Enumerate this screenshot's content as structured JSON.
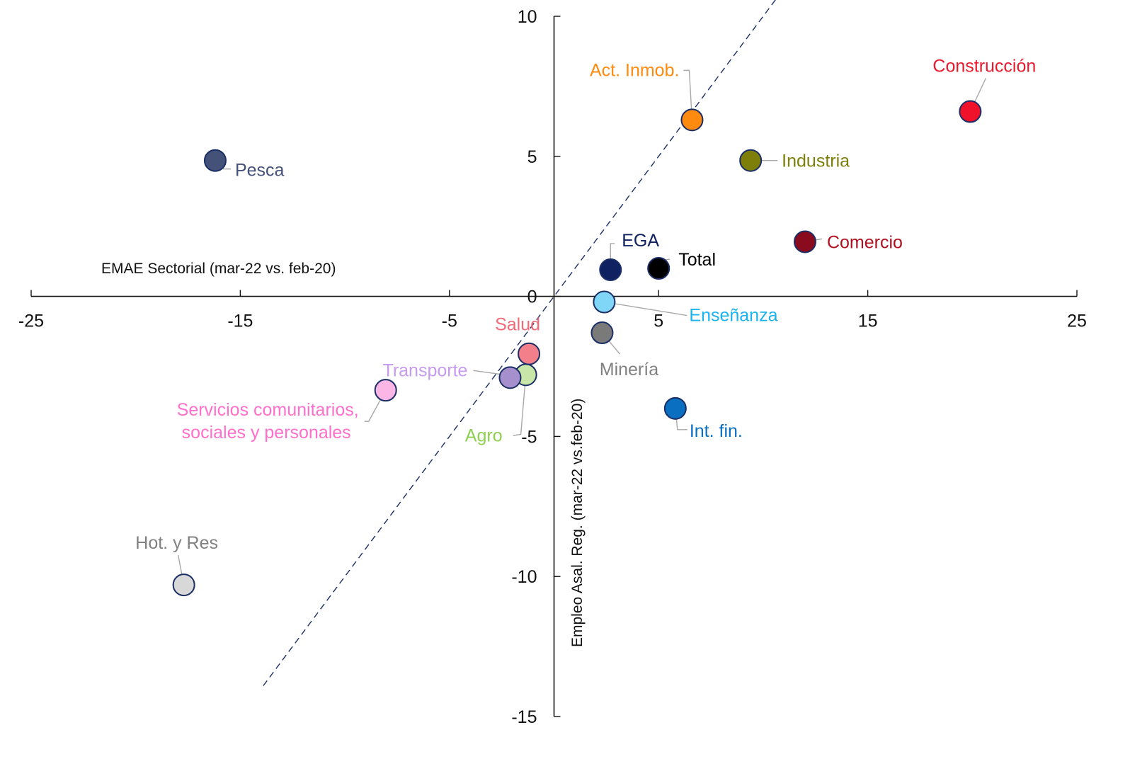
{
  "chart_data": {
    "type": "scatter",
    "title": "",
    "xlabel": "EMAE Sectorial (mar-22 vs. feb-20)",
    "ylabel": "Empleo  Asal. Reg. (mar-22 vs.feb-20)",
    "xlim": [
      -25,
      25
    ],
    "ylim": [
      -15,
      10
    ],
    "x_ticks": [
      -25,
      -15,
      -5,
      5,
      15,
      25
    ],
    "x_tick_labels": [
      "-25",
      "-15",
      "-5",
      "5",
      "15",
      "25"
    ],
    "y_ticks": [
      10,
      5,
      0,
      -5,
      -10,
      -15
    ],
    "y_tick_labels": [
      "10",
      "5",
      "0",
      "-5",
      "-10",
      "-15"
    ],
    "grid": false,
    "legend": "none",
    "reference_line": {
      "style": "dashed",
      "color": "#1b2f66",
      "description": "45-degree line y = x",
      "x_range": [
        -13.9,
        10.65
      ]
    },
    "marker_edge_color": "#1b2f66",
    "points": [
      {
        "name": "Pesca",
        "label": "Pesca",
        "x": -16.2,
        "y": 4.85,
        "color": "#44527a",
        "label_color": "#44527a"
      },
      {
        "name": "Act. Inmob.",
        "label": "Act. Inmob.",
        "x": 6.6,
        "y": 6.3,
        "color": "#ff8a10",
        "label_color": "#ff8a10"
      },
      {
        "name": "Construcción",
        "label": "Construcción",
        "x": 19.9,
        "y": 6.6,
        "color": "#f0122a",
        "label_color": "#ea1a2e"
      },
      {
        "name": "Industria",
        "label": "Industria",
        "x": 9.4,
        "y": 4.85,
        "color": "#7d7f0a",
        "label_color": "#7d7f0a"
      },
      {
        "name": "Comercio",
        "label": "Comercio",
        "x": 12.0,
        "y": 1.95,
        "color": "#8b0b1e",
        "label_color": "#b0101f"
      },
      {
        "name": "EGA",
        "label": "EGA",
        "x": 2.7,
        "y": 0.95,
        "color": "#0f2160",
        "label_color": "#0f2160"
      },
      {
        "name": "Total",
        "label": "Total",
        "x": 5.0,
        "y": 1.0,
        "color": "#000000",
        "label_color": "#000000"
      },
      {
        "name": "Enseñanza",
        "label": "Enseñanza",
        "x": 2.4,
        "y": -0.2,
        "color": "#7fd6f7",
        "label_color": "#1ab3ee"
      },
      {
        "name": "Minería",
        "label": "Minería",
        "x": 2.3,
        "y": -1.3,
        "color": "#7a7a7a",
        "label_color": "#808080"
      },
      {
        "name": "Int. fin.",
        "label": "Int. fin.",
        "x": 5.8,
        "y": -4.0,
        "color": "#0a6fc0",
        "label_color": "#0a6fc0"
      },
      {
        "name": "Salud",
        "label": "Salud",
        "x": -1.2,
        "y": -2.05,
        "color": "#f27f8a",
        "label_color": "#f26a78"
      },
      {
        "name": "Agro",
        "label": "Agro",
        "x": -1.35,
        "y": -2.8,
        "color": "#c8e6a8",
        "label_color": "#8fcf50"
      },
      {
        "name": "Transporte",
        "label": "Transporte",
        "x": -2.1,
        "y": -2.9,
        "color": "#a58fcc",
        "label_color": "#c69bf0"
      },
      {
        "name": "Servicios comunitarios, sociales y personales",
        "label": "Servicios comunitarios,",
        "label2": "sociales y personales",
        "x": -8.05,
        "y": -3.35,
        "color": "#fbb6e6",
        "label_color": "#ff6fcb"
      },
      {
        "name": "Hot. y Res",
        "label": "Hot. y Res",
        "x": -17.7,
        "y": -10.3,
        "color": "#d8d8d8",
        "label_color": "#808080"
      }
    ]
  }
}
